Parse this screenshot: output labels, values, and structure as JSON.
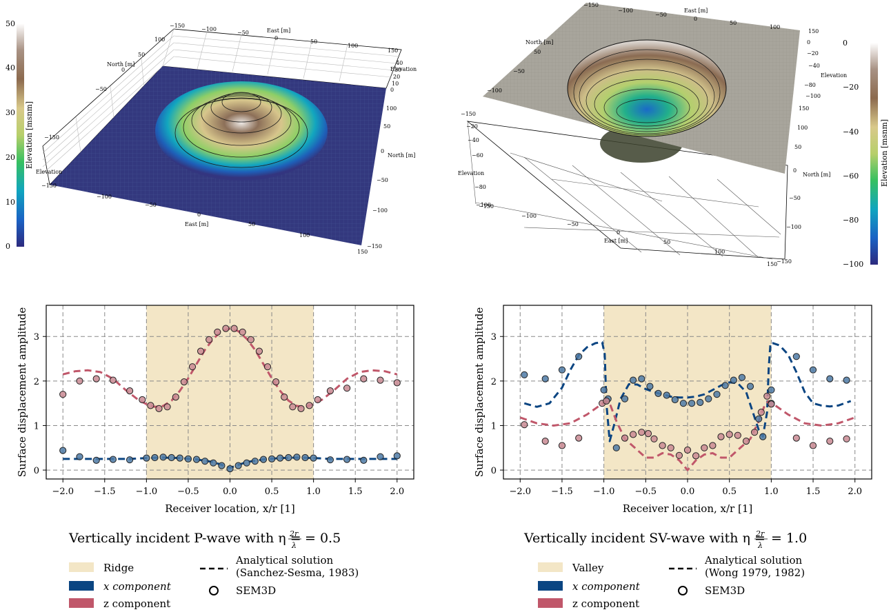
{
  "surfaces": [
    {
      "name": "ridge-surface",
      "colorbar_label": "Elevation [msnm]",
      "colorbar_ticks": [
        "0",
        "10",
        "20",
        "30",
        "40",
        "50"
      ],
      "east_label": "East [m]",
      "north_label": "North [m]",
      "elevation_label": "Elevation",
      "east_ticks": [
        "−150",
        "−100",
        "−50",
        "0",
        "50",
        "100",
        "150"
      ],
      "north_ticks": [
        "−150",
        "−100",
        "−50",
        "0",
        "50",
        "100",
        "150"
      ],
      "elev_ticks": [
        "0",
        "10",
        "20",
        "30",
        "40",
        "50"
      ]
    },
    {
      "name": "valley-surface",
      "colorbar_label": "Elevation [msnm]",
      "colorbar_ticks": [
        "0",
        "−20",
        "−40",
        "−60",
        "−80",
        "−100"
      ],
      "east_label": "East [m]",
      "north_label": "North [m]",
      "elevation_label": "Elevation",
      "east_ticks": [
        "−150",
        "−100",
        "−50",
        "0",
        "50",
        "100",
        "150"
      ],
      "north_ticks": [
        "−150",
        "−100",
        "−50",
        "0",
        "50",
        "100",
        "150"
      ],
      "elev_ticks": [
        "0",
        "−20",
        "−40",
        "−60",
        "−80",
        "−100"
      ]
    }
  ],
  "chart_data": [
    {
      "type": "line",
      "title": "Vertically incident P-wave with η = 2r/λ = 0.5",
      "title_text": "Vertically incident P-wave with η =",
      "title_frac_num": "2r",
      "title_frac_den": "λ",
      "title_value": "= 0.5",
      "xlabel": "Receiver location, x/r [1]",
      "ylabel": "Surface displacement amplitude",
      "xlim": [
        -2.2,
        2.2
      ],
      "ylim": [
        -0.2,
        3.7
      ],
      "xticks": [
        -2.0,
        -1.5,
        -1.0,
        -0.5,
        0.0,
        0.5,
        1.0,
        1.5,
        2.0
      ],
      "xtick_labels": [
        "−2.0",
        "−1.5",
        "−1.0",
        "−0.5",
        "0.0",
        "0.5",
        "1.0",
        "1.5",
        "2.0"
      ],
      "yticks": [
        0,
        1,
        2,
        3
      ],
      "ytick_labels": [
        "0",
        "1",
        "2",
        "3"
      ],
      "grid": true,
      "shaded_region": {
        "x0": -1.0,
        "x1": 1.0,
        "label": "Ridge",
        "color": "#f3e6c6"
      },
      "series": [
        {
          "name": "x component",
          "kind": "analytical",
          "color": "#0b4582",
          "x": [
            -2.0,
            -1.5,
            -1.2,
            -1.0,
            -0.8,
            -0.6,
            -0.4,
            -0.2,
            0.0,
            0.2,
            0.4,
            0.6,
            0.8,
            1.0,
            1.2,
            1.5,
            2.0
          ],
          "y": [
            0.25,
            0.25,
            0.25,
            0.27,
            0.28,
            0.27,
            0.24,
            0.18,
            0.05,
            0.18,
            0.24,
            0.27,
            0.28,
            0.27,
            0.25,
            0.25,
            0.25
          ]
        },
        {
          "name": "z component",
          "kind": "analytical",
          "color": "#c0576a",
          "x": [
            -2.0,
            -1.85,
            -1.7,
            -1.55,
            -1.4,
            -1.25,
            -1.1,
            -1.0,
            -0.9,
            -0.8,
            -0.7,
            -0.6,
            -0.5,
            -0.4,
            -0.3,
            -0.2,
            -0.1,
            0.0,
            0.1,
            0.2,
            0.3,
            0.4,
            0.5,
            0.6,
            0.7,
            0.8,
            0.9,
            1.0,
            1.1,
            1.25,
            1.4,
            1.55,
            1.7,
            1.85,
            2.0
          ],
          "y": [
            2.15,
            2.22,
            2.24,
            2.2,
            2.05,
            1.8,
            1.58,
            1.48,
            1.42,
            1.44,
            1.56,
            1.78,
            2.06,
            2.38,
            2.7,
            2.95,
            3.12,
            3.18,
            3.12,
            2.95,
            2.7,
            2.38,
            2.06,
            1.78,
            1.56,
            1.44,
            1.42,
            1.48,
            1.58,
            1.8,
            2.05,
            2.2,
            2.24,
            2.22,
            2.15
          ]
        },
        {
          "name": "SEM3D x",
          "kind": "sem",
          "color": "#4e7aa6",
          "x": [
            -2.0,
            -1.8,
            -1.6,
            -1.4,
            -1.2,
            -1.0,
            -0.9,
            -0.8,
            -0.7,
            -0.6,
            -0.5,
            -0.4,
            -0.3,
            -0.2,
            -0.1,
            0.0,
            0.1,
            0.2,
            0.3,
            0.4,
            0.5,
            0.6,
            0.7,
            0.8,
            0.9,
            1.0,
            1.2,
            1.4,
            1.6,
            1.8,
            2.0
          ],
          "y": [
            0.44,
            0.3,
            0.22,
            0.24,
            0.23,
            0.27,
            0.28,
            0.29,
            0.28,
            0.27,
            0.25,
            0.24,
            0.2,
            0.16,
            0.1,
            0.03,
            0.1,
            0.16,
            0.2,
            0.24,
            0.25,
            0.27,
            0.28,
            0.29,
            0.28,
            0.27,
            0.23,
            0.24,
            0.22,
            0.3,
            0.32
          ]
        },
        {
          "name": "SEM3D z",
          "kind": "sem",
          "color": "#c98a93",
          "x": [
            -2.0,
            -1.8,
            -1.6,
            -1.4,
            -1.2,
            -1.05,
            -0.95,
            -0.85,
            -0.75,
            -0.65,
            -0.55,
            -0.45,
            -0.35,
            -0.25,
            -0.15,
            -0.05,
            0.05,
            0.15,
            0.25,
            0.35,
            0.45,
            0.55,
            0.65,
            0.75,
            0.85,
            0.95,
            1.05,
            1.2,
            1.4,
            1.6,
            1.8,
            2.0
          ],
          "y": [
            1.7,
            2.0,
            2.05,
            2.02,
            1.78,
            1.58,
            1.45,
            1.38,
            1.42,
            1.64,
            1.98,
            2.32,
            2.67,
            2.93,
            3.1,
            3.18,
            3.18,
            3.1,
            2.93,
            2.67,
            2.32,
            1.98,
            1.64,
            1.42,
            1.38,
            1.45,
            1.58,
            1.78,
            1.84,
            2.05,
            2.02,
            1.96
          ]
        }
      ],
      "legend": {
        "region": "Ridge",
        "x_comp": "x component",
        "z_comp": "z component",
        "analytical_1": "Analytical solution",
        "analytical_2": "(Sanchez-Sesma, 1983)",
        "sem": "SEM3D"
      }
    },
    {
      "type": "line",
      "title": "Vertically incident SV-wave with η = 2r/λ = 1.0",
      "title_text": "Vertically incident SV-wave with η =",
      "title_frac_num": "2r",
      "title_frac_den": "λ",
      "title_value": "= 1.0",
      "xlabel": "Receiver location, x/r [1]",
      "ylabel": "Surface displacement amplitude",
      "xlim": [
        -2.2,
        2.2
      ],
      "ylim": [
        -0.2,
        3.7
      ],
      "xticks": [
        -2.0,
        -1.5,
        -1.0,
        -0.5,
        0.0,
        0.5,
        1.0,
        1.5,
        2.0
      ],
      "xtick_labels": [
        "−2.0",
        "−1.5",
        "−1.0",
        "−0.5",
        "0.0",
        "0.5",
        "1.0",
        "1.5",
        "2.0"
      ],
      "yticks": [
        0,
        1,
        2,
        3
      ],
      "ytick_labels": [
        "0",
        "1",
        "2",
        "3"
      ],
      "grid": true,
      "shaded_region": {
        "x0": -1.0,
        "x1": 1.0,
        "label": "Valley",
        "color": "#f3e6c6"
      },
      "series": [
        {
          "name": "x component",
          "kind": "analytical",
          "color": "#0b4582",
          "x": [
            -1.95,
            -1.8,
            -1.65,
            -1.5,
            -1.4,
            -1.3,
            -1.2,
            -1.1,
            -1.02,
            -0.99,
            -0.97,
            -0.93,
            -0.88,
            -0.8,
            -0.7,
            -0.6,
            -0.5,
            -0.4,
            -0.3,
            -0.2,
            -0.1,
            0.0,
            0.1,
            0.2,
            0.3,
            0.4,
            0.5,
            0.6,
            0.7,
            0.78,
            0.85,
            0.9,
            0.95,
            0.97,
            0.99,
            1.02,
            1.1,
            1.2,
            1.3,
            1.4,
            1.5,
            1.6,
            1.7,
            1.8,
            1.95
          ],
          "y": [
            1.5,
            1.42,
            1.5,
            1.85,
            2.25,
            2.58,
            2.76,
            2.85,
            2.87,
            2.6,
            1.5,
            0.65,
            1.0,
            1.6,
            1.93,
            1.92,
            1.82,
            1.75,
            1.7,
            1.65,
            1.63,
            1.63,
            1.65,
            1.7,
            1.8,
            1.9,
            1.97,
            1.95,
            1.75,
            1.3,
            0.9,
            0.75,
            1.3,
            2.3,
            2.85,
            2.85,
            2.8,
            2.6,
            2.2,
            1.75,
            1.5,
            1.45,
            1.43,
            1.45,
            1.55
          ]
        },
        {
          "name": "z component",
          "kind": "analytical",
          "color": "#c0576a",
          "x": [
            -2.0,
            -1.8,
            -1.6,
            -1.4,
            -1.2,
            -1.05,
            -0.97,
            -0.92,
            -0.85,
            -0.75,
            -0.6,
            -0.5,
            -0.4,
            -0.3,
            -0.2,
            -0.1,
            0.0,
            0.1,
            0.2,
            0.3,
            0.4,
            0.5,
            0.6,
            0.75,
            0.85,
            0.92,
            0.97,
            1.05,
            1.2,
            1.4,
            1.6,
            1.8,
            2.0
          ],
          "y": [
            1.18,
            1.05,
            1.0,
            1.05,
            1.25,
            1.45,
            1.55,
            1.45,
            1.1,
            0.7,
            0.45,
            0.28,
            0.28,
            0.38,
            0.35,
            0.22,
            0.0,
            0.22,
            0.35,
            0.38,
            0.28,
            0.28,
            0.45,
            0.7,
            1.1,
            1.45,
            1.55,
            1.45,
            1.25,
            1.05,
            1.0,
            1.05,
            1.18
          ]
        },
        {
          "name": "SEM3D x",
          "kind": "sem",
          "color": "#4e7aa6",
          "x": [
            -1.95,
            -1.7,
            -1.5,
            -1.3,
            -1.0,
            -0.95,
            -0.85,
            -0.75,
            -0.65,
            -0.55,
            -0.45,
            -0.35,
            -0.25,
            -0.15,
            -0.05,
            0.05,
            0.15,
            0.25,
            0.35,
            0.45,
            0.55,
            0.65,
            0.75,
            0.85,
            0.9,
            1.0,
            1.0,
            1.3,
            1.5,
            1.7,
            1.9
          ],
          "y": [
            2.14,
            2.05,
            2.25,
            2.55,
            1.8,
            1.6,
            0.5,
            1.6,
            2.02,
            2.05,
            1.88,
            1.72,
            1.68,
            1.58,
            1.5,
            1.5,
            1.52,
            1.6,
            1.7,
            1.9,
            2.02,
            2.08,
            1.88,
            1.15,
            0.75,
            1.8,
            1.5,
            2.55,
            2.25,
            2.05,
            2.02
          ]
        },
        {
          "name": "SEM3D z",
          "kind": "sem",
          "color": "#c98a93",
          "x": [
            -1.95,
            -1.7,
            -1.5,
            -1.3,
            -1.02,
            -0.97,
            -0.75,
            -0.65,
            -0.55,
            -0.47,
            -0.4,
            -0.3,
            -0.2,
            -0.1,
            0.0,
            0.1,
            0.2,
            0.3,
            0.4,
            0.5,
            0.6,
            0.7,
            0.8,
            0.88,
            0.95,
            1.0,
            1.3,
            1.5,
            1.7,
            1.9
          ],
          "y": [
            1.02,
            0.65,
            0.55,
            0.72,
            1.5,
            1.55,
            0.72,
            0.8,
            0.85,
            0.82,
            0.7,
            0.55,
            0.5,
            0.33,
            0.45,
            0.32,
            0.5,
            0.55,
            0.75,
            0.8,
            0.78,
            0.65,
            0.85,
            1.3,
            1.66,
            1.48,
            0.72,
            0.55,
            0.65,
            0.7
          ]
        }
      ],
      "legend": {
        "region": "Valley",
        "x_comp": "x component",
        "z_comp": "z component",
        "analytical_1": "Analytical solution",
        "analytical_2": "(Wong 1979, 1982)",
        "sem": "SEM3D"
      }
    }
  ]
}
